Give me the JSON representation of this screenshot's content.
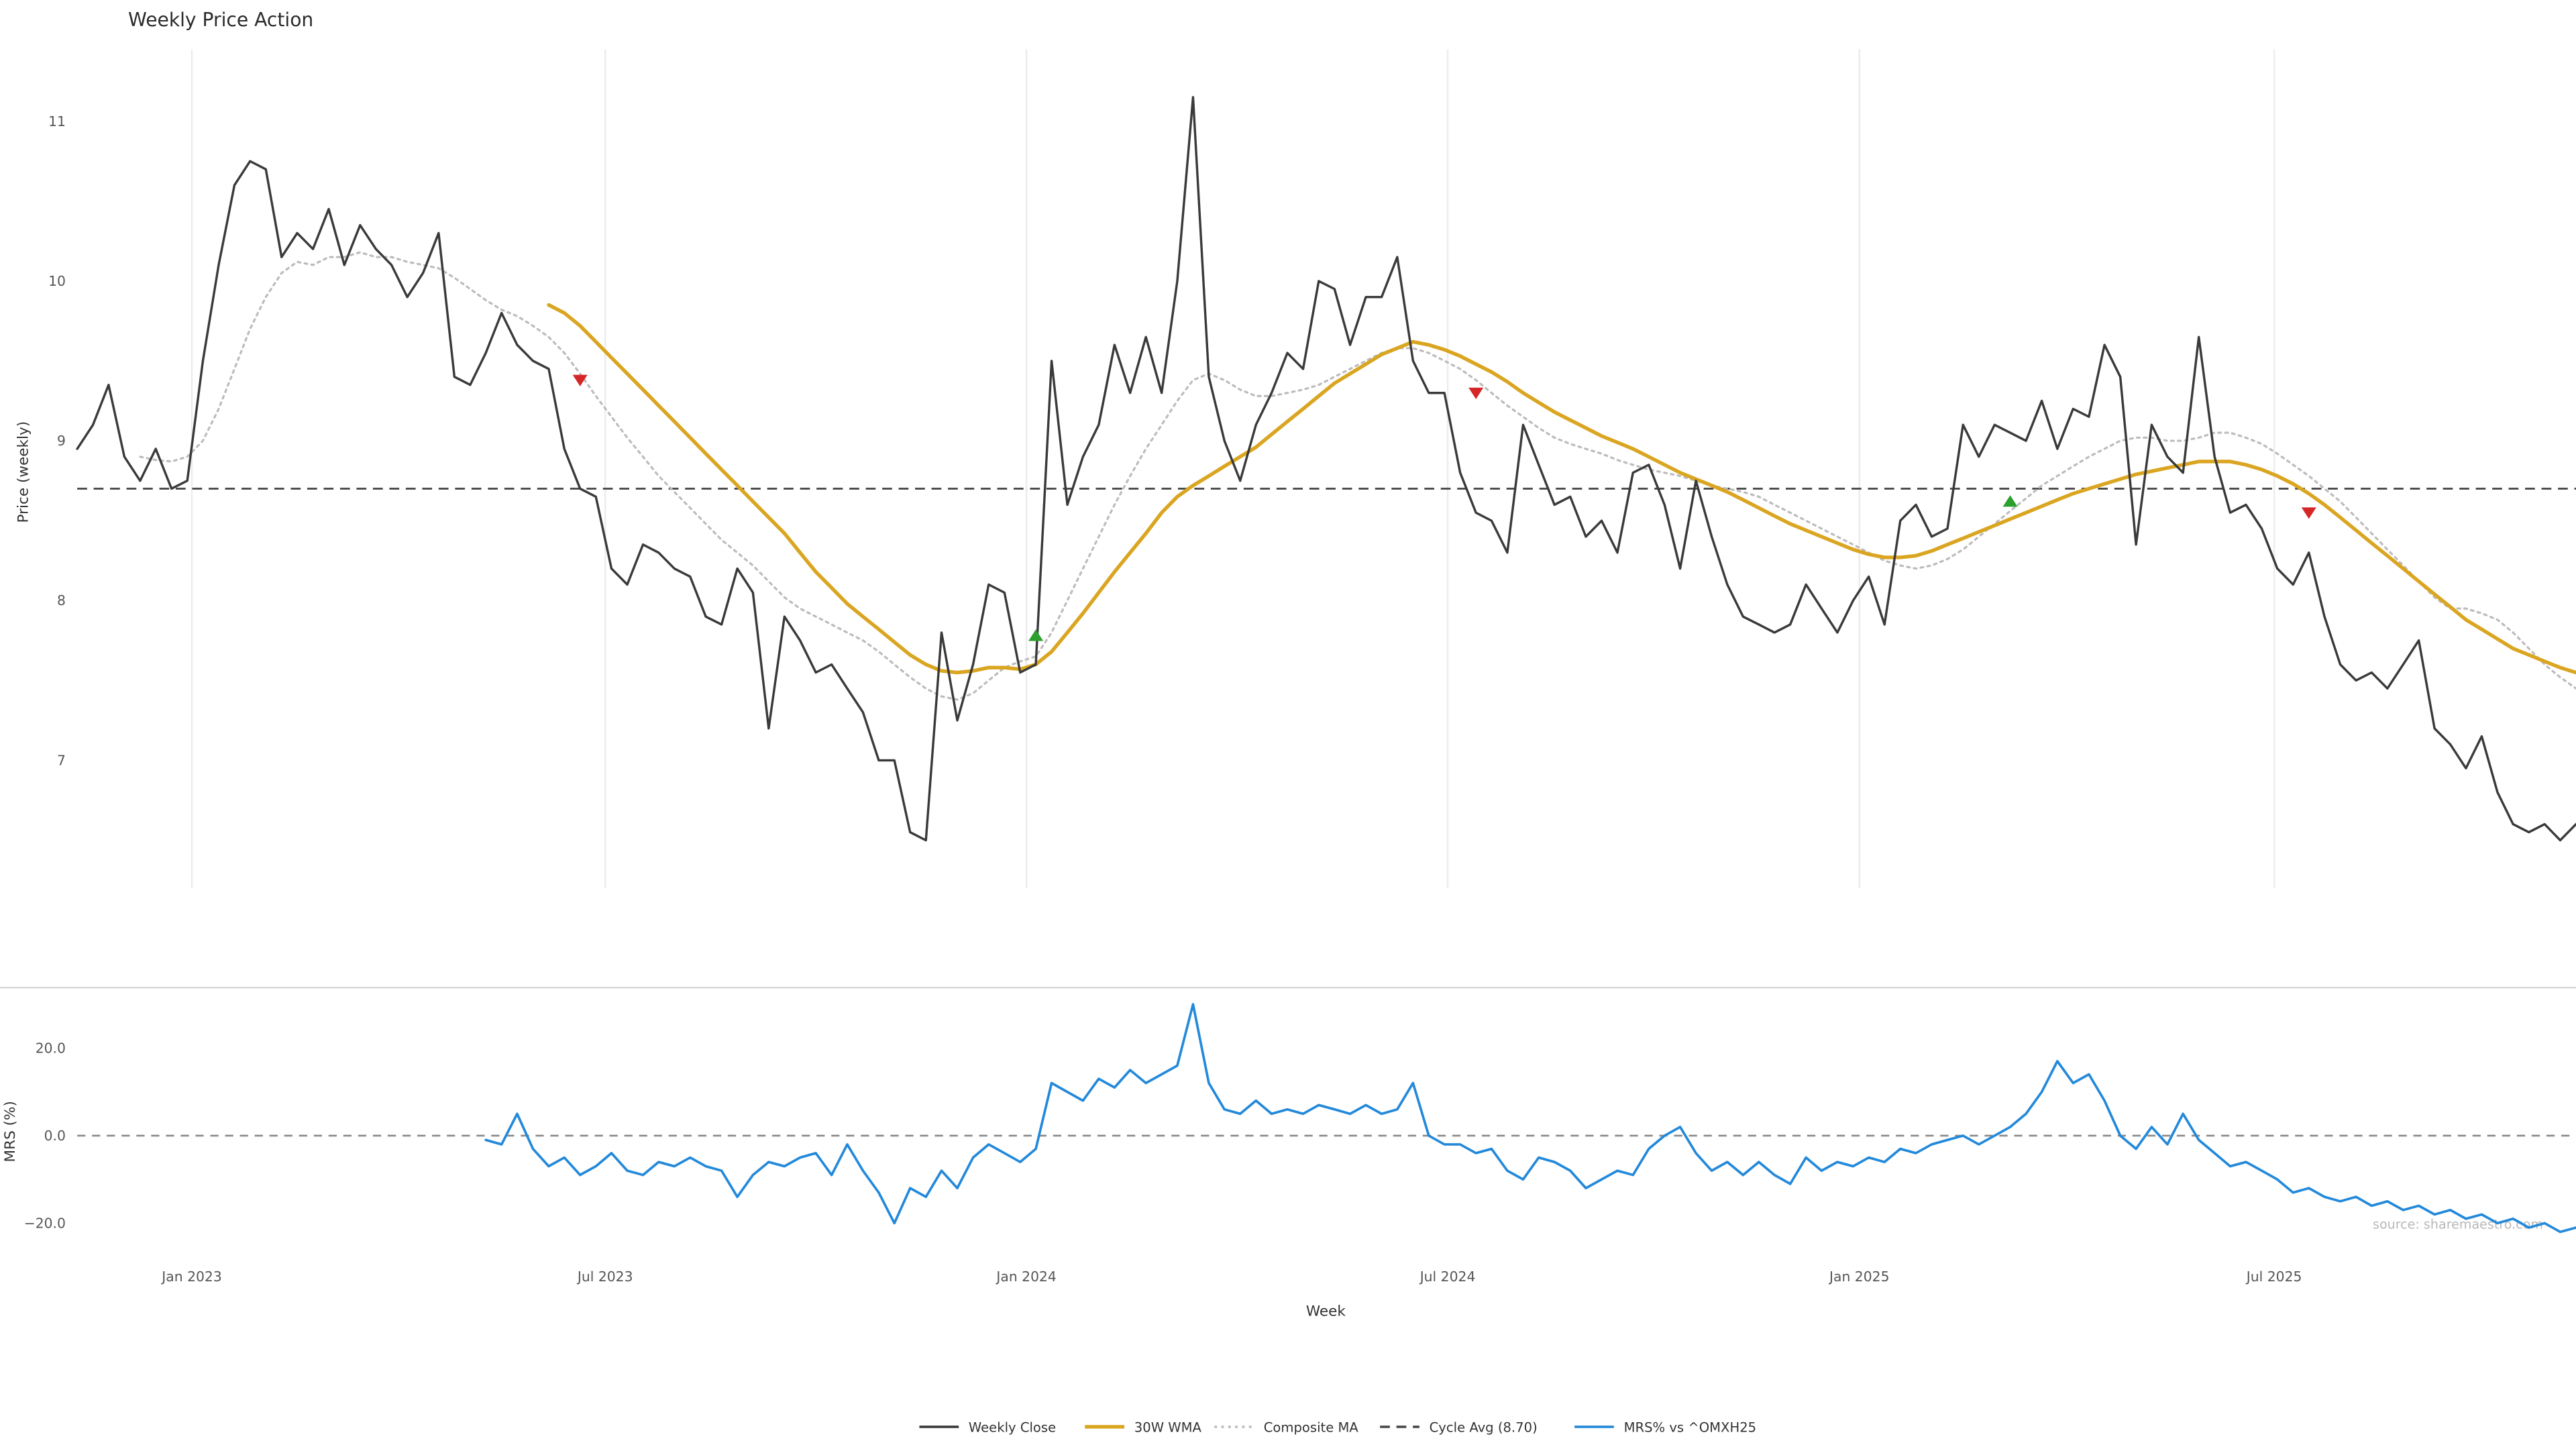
{
  "title": "Weekly Price Action",
  "source": "source: sharemaestro.com",
  "axes": {
    "x_label": "Week",
    "price_label": "Price (weekly)",
    "mrs_label": "MRS (%)"
  },
  "legend": {
    "items": [
      {
        "label": "Weekly Close",
        "color": "#3a3a3a",
        "style": "solid"
      },
      {
        "label": "30W WMA",
        "color": "#DAA520",
        "style": "solid"
      },
      {
        "label": "Composite MA",
        "color": "#bcbcbc",
        "style": "dotted"
      },
      {
        "label": "Cycle Avg (8.70)",
        "color": "#4a4a4a",
        "style": "dashed"
      },
      {
        "label": "MRS% vs ^OMXH25",
        "color": "#2389da",
        "style": "solid"
      }
    ]
  },
  "chart_data": {
    "type": "line",
    "x": {
      "label": "Week",
      "n_weeks": 160,
      "ticks": [
        {
          "label": "Jan 2023",
          "week": 7.3
        },
        {
          "label": "Jul 2023",
          "week": 33.6
        },
        {
          "label": "Jan 2024",
          "week": 60.4
        },
        {
          "label": "Jul 2024",
          "week": 87.2
        },
        {
          "label": "Jan 2025",
          "week": 113.4
        },
        {
          "label": "Jul 2025",
          "week": 139.8
        }
      ]
    },
    "panels": [
      {
        "name": "price",
        "ylabel": "Price (weekly)",
        "ylim": [
          6.2,
          11.45
        ],
        "yticks": [
          7,
          8,
          9,
          10,
          11
        ],
        "cycle_avg": {
          "name": "Cycle Avg",
          "value": 8.7,
          "color": "#4a4a4a",
          "style": "dashed"
        },
        "series": [
          {
            "name": "Weekly Close",
            "color": "#3a3a3a",
            "style": "solid",
            "width": 1.4,
            "start_week": 0,
            "values": [
              8.95,
              9.1,
              9.35,
              8.9,
              8.75,
              8.95,
              8.7,
              8.75,
              9.5,
              10.1,
              10.6,
              10.75,
              10.7,
              10.15,
              10.3,
              10.2,
              10.45,
              10.1,
              10.35,
              10.2,
              10.1,
              9.9,
              10.05,
              10.3,
              9.4,
              9.35,
              9.55,
              9.8,
              9.6,
              9.5,
              9.45,
              8.95,
              8.7,
              8.65,
              8.2,
              8.1,
              8.35,
              8.3,
              8.2,
              8.15,
              7.9,
              7.85,
              8.2,
              8.05,
              7.2,
              7.9,
              7.75,
              7.55,
              7.6,
              7.45,
              7.3,
              7.0,
              7.0,
              6.55,
              6.5,
              7.8,
              7.25,
              7.6,
              8.1,
              8.05,
              7.55,
              7.6,
              9.5,
              8.6,
              8.9,
              9.1,
              9.6,
              9.3,
              9.65,
              9.3,
              10.0,
              11.15,
              9.4,
              9.0,
              8.75,
              9.1,
              9.3,
              9.55,
              9.45,
              10.0,
              9.95,
              9.6,
              9.9,
              9.9,
              10.15,
              9.5,
              9.3,
              9.3,
              8.8,
              8.55,
              8.5,
              8.3,
              9.1,
              8.85,
              8.6,
              8.65,
              8.4,
              8.5,
              8.3,
              8.8,
              8.85,
              8.6,
              8.2,
              8.75,
              8.4,
              8.1,
              7.9,
              7.85,
              7.8,
              7.85,
              8.1,
              7.95,
              7.8,
              8.0,
              8.15,
              7.85,
              8.5,
              8.6,
              8.4,
              8.45,
              9.1,
              8.9,
              9.1,
              9.05,
              9.0,
              9.25,
              8.95,
              9.2,
              9.15,
              9.6,
              9.4,
              8.35,
              9.1,
              8.9,
              8.8,
              9.65,
              8.9,
              8.55,
              8.6,
              8.45,
              8.2,
              8.1,
              8.3,
              7.9,
              7.6,
              7.5,
              7.55,
              7.45,
              7.6,
              7.75,
              7.2,
              7.1,
              6.95,
              7.15,
              6.8,
              6.6,
              6.55,
              6.6,
              6.5,
              6.6
            ]
          },
          {
            "name": "30W WMA",
            "color": "#DAA520",
            "style": "solid",
            "width": 2.2,
            "start_week": 30,
            "values": [
              9.85,
              9.8,
              9.72,
              9.62,
              9.52,
              9.42,
              9.32,
              9.22,
              9.12,
              9.02,
              8.92,
              8.82,
              8.72,
              8.62,
              8.52,
              8.42,
              8.3,
              8.18,
              8.08,
              7.98,
              7.9,
              7.82,
              7.74,
              7.66,
              7.6,
              7.56,
              7.55,
              7.56,
              7.58,
              7.58,
              7.57,
              7.6,
              7.68,
              7.8,
              7.92,
              8.05,
              8.18,
              8.3,
              8.42,
              8.55,
              8.65,
              8.72,
              8.78,
              8.84,
              8.9,
              8.96,
              9.04,
              9.12,
              9.2,
              9.28,
              9.36,
              9.42,
              9.48,
              9.54,
              9.58,
              9.62,
              9.6,
              9.57,
              9.53,
              9.48,
              9.43,
              9.37,
              9.3,
              9.24,
              9.18,
              9.13,
              9.08,
              9.03,
              8.99,
              8.95,
              8.9,
              8.85,
              8.8,
              8.76,
              8.72,
              8.68,
              8.63,
              8.58,
              8.53,
              8.48,
              8.44,
              8.4,
              8.36,
              8.32,
              8.29,
              8.27,
              8.27,
              8.28,
              8.31,
              8.35,
              8.39,
              8.43,
              8.47,
              8.51,
              8.55,
              8.59,
              8.63,
              8.67,
              8.7,
              8.73,
              8.76,
              8.79,
              8.81,
              8.83,
              8.85,
              8.87,
              8.87,
              8.87,
              8.85,
              8.82,
              8.78,
              8.73,
              8.67,
              8.6,
              8.52,
              8.44,
              8.36,
              8.28,
              8.2,
              8.12,
              8.04,
              7.96,
              7.88,
              7.82,
              7.76,
              7.7,
              7.66,
              7.62,
              7.58,
              7.55
            ]
          },
          {
            "name": "Composite MA",
            "color": "#bcbcbc",
            "style": "dotted",
            "width": 1.3,
            "start_week": 4,
            "values": [
              8.9,
              8.88,
              8.87,
              8.9,
              9.0,
              9.2,
              9.45,
              9.7,
              9.9,
              10.05,
              10.12,
              10.1,
              10.15,
              10.15,
              10.18,
              10.15,
              10.15,
              10.12,
              10.1,
              10.08,
              10.02,
              9.95,
              9.88,
              9.82,
              9.78,
              9.72,
              9.65,
              9.55,
              9.42,
              9.28,
              9.15,
              9.02,
              8.9,
              8.78,
              8.68,
              8.58,
              8.48,
              8.38,
              8.3,
              8.22,
              8.12,
              8.02,
              7.95,
              7.9,
              7.85,
              7.8,
              7.75,
              7.68,
              7.6,
              7.52,
              7.45,
              7.4,
              7.38,
              7.42,
              7.5,
              7.58,
              7.62,
              7.65,
              7.8,
              8.0,
              8.2,
              8.4,
              8.6,
              8.78,
              8.95,
              9.1,
              9.25,
              9.38,
              9.42,
              9.38,
              9.32,
              9.28,
              9.28,
              9.3,
              9.32,
              9.35,
              9.4,
              9.45,
              9.5,
              9.55,
              9.58,
              9.58,
              9.55,
              9.5,
              9.45,
              9.38,
              9.3,
              9.22,
              9.15,
              9.08,
              9.02,
              8.98,
              8.95,
              8.92,
              8.88,
              8.85,
              8.82,
              8.8,
              8.78,
              8.75,
              8.72,
              8.7,
              8.68,
              8.65,
              8.6,
              8.55,
              8.5,
              8.45,
              8.4,
              8.35,
              8.3,
              8.25,
              8.22,
              8.2,
              8.22,
              8.26,
              8.32,
              8.4,
              8.48,
              8.56,
              8.64,
              8.72,
              8.78,
              8.84,
              8.9,
              8.95,
              9.0,
              9.02,
              9.02,
              9.0,
              9.0,
              9.02,
              9.05,
              9.05,
              9.02,
              8.98,
              8.92,
              8.85,
              8.78,
              8.7,
              8.62,
              8.52,
              8.42,
              8.32,
              8.22,
              8.12,
              8.02,
              7.95,
              7.95,
              7.92,
              7.88,
              7.8,
              7.7,
              7.6,
              7.52,
              7.45
            ]
          }
        ],
        "markers": {
          "buy": [
            {
              "week": 61,
              "price": 7.78
            },
            {
              "week": 123,
              "price": 8.62
            }
          ],
          "sell": [
            {
              "week": 32,
              "price": 9.38
            },
            {
              "week": 89,
              "price": 9.3
            },
            {
              "week": 142,
              "price": 8.55
            }
          ],
          "buy_color": "#2ca02c",
          "sell_color": "#d62728"
        }
      },
      {
        "name": "mrs",
        "ylabel": "MRS (%)",
        "ylim": [
          -28,
          34
        ],
        "yticks": [
          -20,
          0,
          20
        ],
        "zero_line": true,
        "series": [
          {
            "name": "MRS% vs ^OMXH25",
            "color": "#2389da",
            "style": "solid",
            "width": 1.5,
            "start_week": 26,
            "values": [
              -1,
              -2,
              5,
              -3,
              -7,
              -5,
              -9,
              -7,
              -4,
              -8,
              -9,
              -6,
              -7,
              -5,
              -7,
              -8,
              -14,
              -9,
              -6,
              -7,
              -5,
              -4,
              -9,
              -2,
              -8,
              -13,
              -20,
              -12,
              -14,
              -8,
              -12,
              -5,
              -2,
              -4,
              -6,
              -3,
              12,
              10,
              8,
              13,
              11,
              15,
              12,
              14,
              16,
              30,
              12,
              6,
              5,
              8,
              5,
              6,
              5,
              7,
              6,
              5,
              7,
              5,
              6,
              12,
              0,
              -2,
              -2,
              -4,
              -3,
              -8,
              -10,
              -5,
              -6,
              -8,
              -12,
              -10,
              -8,
              -9,
              -3,
              0,
              2,
              -4,
              -8,
              -6,
              -9,
              -6,
              -9,
              -11,
              -5,
              -8,
              -6,
              -7,
              -5,
              -6,
              -3,
              -4,
              -2,
              -1,
              0,
              -2,
              0,
              2,
              5,
              10,
              17,
              12,
              14,
              8,
              0,
              -3,
              2,
              -2,
              5,
              -1,
              -4,
              -7,
              -6,
              -8,
              -10,
              -13,
              -12,
              -14,
              -15,
              -14,
              -16,
              -15,
              -17,
              -16,
              -18,
              -17,
              -19,
              -18,
              -20,
              -19,
              -21,
              -20,
              -22,
              -21
            ]
          }
        ]
      }
    ]
  }
}
